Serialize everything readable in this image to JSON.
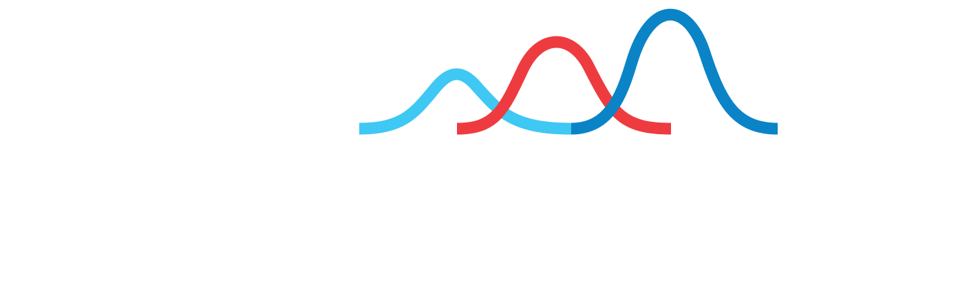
{
  "logo": {
    "name": "bell-curves-logo",
    "description_visible_text": "",
    "curves": [
      {
        "name": "light-blue-curve",
        "color": "#3ec8f3",
        "relative_height": 0.47
      },
      {
        "name": "red-curve",
        "color": "#ee3b3f",
        "relative_height": 0.74
      },
      {
        "name": "dark-blue-curve",
        "color": "#0a84c6",
        "relative_height": 1.0
      }
    ]
  }
}
